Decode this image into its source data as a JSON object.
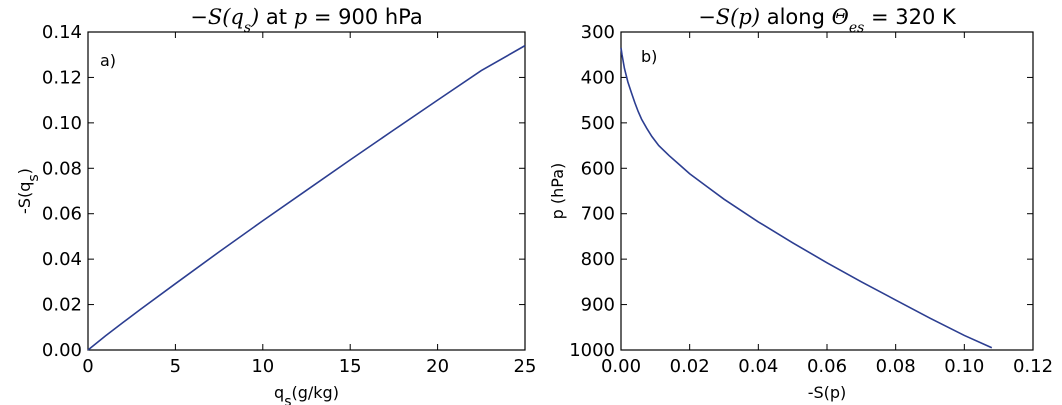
{
  "chart_data": [
    {
      "type": "line",
      "panel_label": "a)",
      "title": {
        "pre": "−S(q",
        "sub": "s",
        "mid": ") at ",
        "math": "p",
        "post": " = 900 hPa"
      },
      "xlabel": "qs(g/kg)",
      "ylabel": "-S(qs)",
      "xlim": [
        0,
        25
      ],
      "ylim": [
        0,
        0.14
      ],
      "xticks": [
        0,
        5,
        10,
        15,
        20,
        25
      ],
      "xtick_labels": [
        "0",
        "5",
        "10",
        "15",
        "20",
        "25"
      ],
      "yticks": [
        0,
        0.02,
        0.04,
        0.06,
        0.08,
        0.1,
        0.12,
        0.14
      ],
      "ytick_labels": [
        "0.00",
        "0.02",
        "0.04",
        "0.06",
        "0.08",
        "0.10",
        "0.12",
        "0.14"
      ],
      "y_inverted": false,
      "series": [
        {
          "color": "#2c3e91",
          "x": [
            0,
            1,
            2,
            3,
            5,
            7.5,
            10,
            12.5,
            15,
            17.5,
            20,
            22.5,
            25
          ],
          "y": [
            0,
            0.0062,
            0.0121,
            0.0179,
            0.0292,
            0.0432,
            0.0569,
            0.0703,
            0.0837,
            0.0969,
            0.11,
            0.123,
            0.134
          ]
        }
      ]
    },
    {
      "type": "line",
      "panel_label": "b)",
      "title": {
        "pre": "−S(",
        "math": "p",
        "mid": ") along ",
        "theta": "Θ",
        "sub": "es",
        "post": " = 320 K"
      },
      "xlabel": "-S(p)",
      "ylabel": "p (hPa)",
      "xlim": [
        0,
        0.12
      ],
      "ylim": [
        1000,
        300
      ],
      "xticks": [
        0,
        0.02,
        0.04,
        0.06,
        0.08,
        0.1,
        0.12
      ],
      "xtick_labels": [
        "0.00",
        "0.02",
        "0.04",
        "0.06",
        "0.08",
        "0.10",
        "0.12"
      ],
      "yticks": [
        300,
        400,
        500,
        600,
        700,
        800,
        900,
        1000
      ],
      "ytick_labels": [
        "300",
        "400",
        "500",
        "600",
        "700",
        "800",
        "900",
        "1000"
      ],
      "y_inverted": true,
      "series": [
        {
          "color": "#2c3e91",
          "x": [
            0.0,
            0.0003,
            0.001,
            0.002,
            0.003,
            0.004,
            0.005,
            0.006,
            0.0075,
            0.009,
            0.011,
            0.014,
            0.017,
            0.02,
            0.025,
            0.03,
            0.04,
            0.05,
            0.06,
            0.07,
            0.08,
            0.09,
            0.1,
            0.108
          ],
          "y": [
            335,
            350,
            380,
            410,
            433,
            455,
            475,
            492,
            512,
            530,
            550,
            572,
            592,
            612,
            640,
            668,
            718,
            764,
            808,
            850,
            890,
            930,
            968,
            995
          ]
        }
      ]
    }
  ]
}
